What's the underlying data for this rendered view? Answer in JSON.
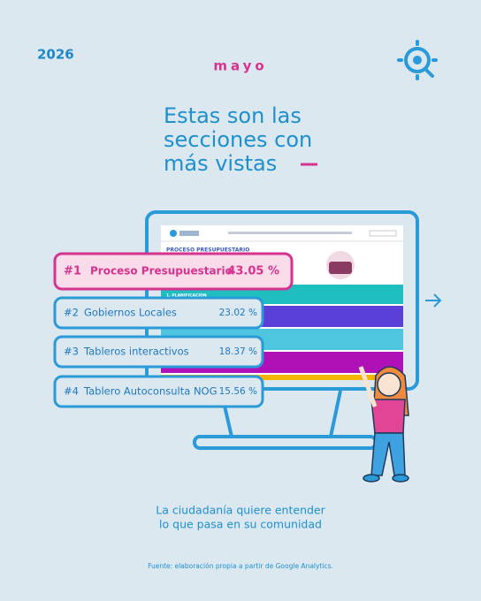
{
  "header": {
    "year": "2026",
    "month": "mayo"
  },
  "title": [
    "Estas son las",
    "secciones con",
    "más vistas"
  ],
  "screen": {
    "heading": "PROCESO PRESUPUESTARIO",
    "subheading": "1. PLANIFICACIÓN"
  },
  "ranking": [
    {
      "rank": "#1",
      "section": "Proceso Presupuestario",
      "share": "43.05 %"
    },
    {
      "rank": "#2",
      "section": "Gobiernos Locales",
      "share": "23.02 %"
    },
    {
      "rank": "#3",
      "section": "Tableros interactivos",
      "share": "18.37 %"
    },
    {
      "rank": "#4",
      "section": "Tablero  Autoconsulta NOG",
      "share": "15.56 %"
    }
  ],
  "footer": {
    "message": [
      "La ciudadanía quiere entender",
      "lo que pasa en su comunidad"
    ],
    "source": "Fuente: elaboración propia a partir de Google Analytics."
  }
}
